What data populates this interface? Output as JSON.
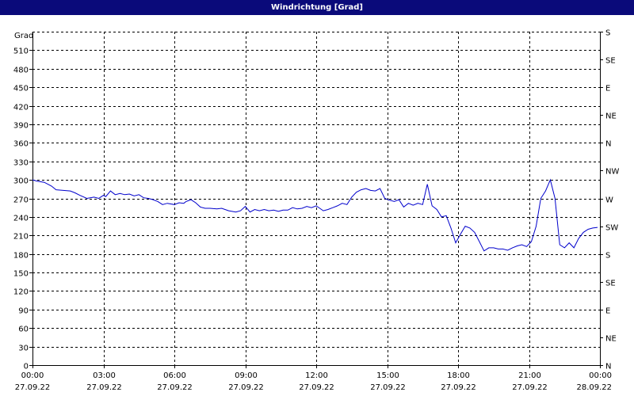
{
  "chart_data": {
    "type": "line",
    "title": "Windrichtung [Grad]",
    "ylabel": "Grad",
    "ylim": [
      0,
      540
    ],
    "yticks": [
      0,
      30,
      60,
      90,
      120,
      150,
      180,
      210,
      240,
      270,
      300,
      330,
      360,
      390,
      420,
      450,
      480,
      510
    ],
    "right_axis": {
      "ticks": [
        {
          "value": 0,
          "label": "N"
        },
        {
          "value": 45,
          "label": "NE"
        },
        {
          "value": 90,
          "label": "E"
        },
        {
          "value": 135,
          "label": "SE"
        },
        {
          "value": 180,
          "label": "S"
        },
        {
          "value": 225,
          "label": "SW"
        },
        {
          "value": 270,
          "label": "W"
        },
        {
          "value": 315,
          "label": "NW"
        },
        {
          "value": 360,
          "label": "N"
        },
        {
          "value": 405,
          "label": "NE"
        },
        {
          "value": 450,
          "label": "E"
        },
        {
          "value": 495,
          "label": "SE"
        },
        {
          "value": 540,
          "label": "S"
        }
      ]
    },
    "x_ticks": [
      {
        "hour": 0,
        "time": "00:00",
        "date": "27.09.22"
      },
      {
        "hour": 3,
        "time": "03:00",
        "date": "27.09.22"
      },
      {
        "hour": 6,
        "time": "06:00",
        "date": "27.09.22"
      },
      {
        "hour": 9,
        "time": "09:00",
        "date": "27.09.22"
      },
      {
        "hour": 12,
        "time": "12:00",
        "date": "27.09.22"
      },
      {
        "hour": 15,
        "time": "15:00",
        "date": "27.09.22"
      },
      {
        "hour": 18,
        "time": "18:00",
        "date": "27.09.22"
      },
      {
        "hour": 21,
        "time": "21:00",
        "date": "27.09.22"
      },
      {
        "hour": 24,
        "time": "00:00",
        "date": "28.09.22"
      }
    ],
    "grid": true,
    "line_color": "#0000cc",
    "series": [
      {
        "x": [
          0,
          0.2,
          0.5,
          0.8,
          1.0,
          1.3,
          1.6,
          1.8,
          2.0,
          2.3,
          2.6,
          2.8,
          3.0,
          3.1,
          3.3,
          3.5,
          3.7,
          3.9,
          4.1,
          4.3,
          4.5,
          4.7,
          4.9,
          5.1,
          5.3,
          5.5,
          5.7,
          6.0,
          6.2,
          6.4,
          6.5,
          6.7,
          6.9,
          7.1,
          7.3,
          7.5,
          7.8,
          8.0,
          8.3,
          8.6,
          8.8,
          9.0,
          9.2,
          9.4,
          9.6,
          9.8,
          10.0,
          10.2,
          10.4,
          10.6,
          10.8,
          11.0,
          11.2,
          11.4,
          11.6,
          11.8,
          12.0,
          12.3,
          12.5,
          12.7,
          12.9,
          13.1,
          13.3,
          13.5,
          13.7,
          13.9,
          14.1,
          14.3,
          14.5,
          14.7,
          14.9,
          15.1,
          15.3,
          15.5,
          15.7,
          15.9,
          16.1,
          16.3,
          16.5,
          16.7,
          16.9,
          17.1,
          17.3,
          17.5,
          17.7,
          17.9,
          18.1,
          18.3,
          18.5,
          18.7,
          18.9,
          19.1,
          19.3,
          19.5,
          19.7,
          19.9,
          20.1,
          20.3,
          20.5,
          20.7,
          20.9,
          21.1,
          21.3,
          21.5,
          21.7,
          21.9,
          22.1,
          22.3,
          22.5,
          22.7,
          22.9,
          23.1,
          23.3,
          23.5,
          23.7,
          23.9
        ],
        "y": [
          300,
          298,
          296,
          290,
          284,
          283,
          282,
          279,
          275,
          270,
          272,
          270,
          275,
          273,
          282,
          276,
          278,
          276,
          277,
          274,
          276,
          271,
          270,
          268,
          265,
          260,
          262,
          260,
          263,
          262,
          265,
          268,
          263,
          256,
          254,
          254,
          253,
          254,
          250,
          248,
          250,
          257,
          248,
          252,
          250,
          252,
          250,
          251,
          249,
          251,
          251,
          255,
          253,
          254,
          257,
          255,
          258,
          250,
          252,
          255,
          258,
          262,
          260,
          272,
          280,
          284,
          286,
          283,
          282,
          286,
          270,
          267,
          265,
          268,
          256,
          262,
          259,
          262,
          260,
          293,
          258,
          252,
          240,
          242,
          222,
          198,
          212,
          225,
          222,
          215,
          200,
          185,
          190,
          190,
          188,
          188,
          186,
          190,
          193,
          195,
          192,
          200,
          225,
          270,
          282,
          300,
          270,
          195,
          190,
          198,
          190,
          205,
          215,
          220,
          222,
          223
        ],
        "y_note_unused": false
      }
    ]
  }
}
